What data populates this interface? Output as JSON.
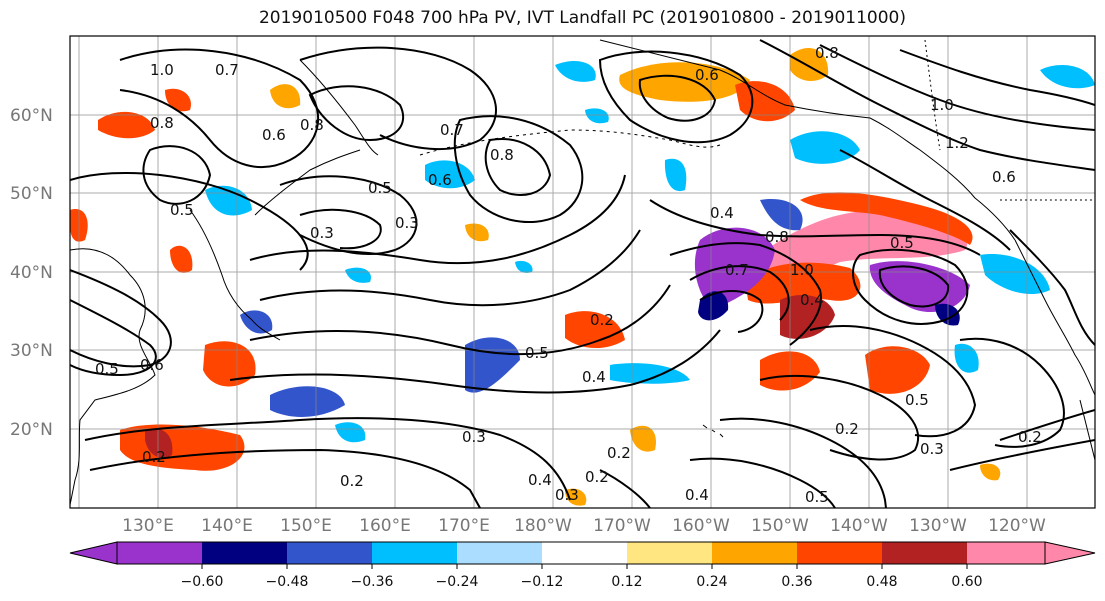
{
  "title": "2019010500 F048 700 hPa PV, IVT Landfall PC (2019010800 - 2019011000)",
  "map": {
    "lat_labels": [
      "60°N",
      "50°N",
      "40°N",
      "30°N",
      "20°N"
    ],
    "lon_labels": [
      "130°E",
      "140°E",
      "150°E",
      "160°E",
      "170°E",
      "180°W",
      "170°W",
      "160°W",
      "150°W",
      "140°W",
      "130°W",
      "120°W"
    ],
    "contour_labels": [
      "0.7",
      "0.8",
      "1.0",
      "0.6",
      "0.8",
      "0.7",
      "0.6",
      "0.8",
      "0.6",
      "0.8",
      "1.0",
      "1.2",
      "0.6",
      "0.5",
      "0.3",
      "0.3",
      "0.5",
      "0.7",
      "0.8",
      "0.4",
      "1.0",
      "0.5",
      "0.4",
      "0.2",
      "0.5",
      "0.4",
      "0.3",
      "0.2",
      "0.2",
      "0.4",
      "0.3",
      "0.2",
      "0.4",
      "0.5",
      "0.5",
      "0.2",
      "0.3",
      "0.6",
      "0.5",
      "0.2",
      "0.2"
    ],
    "colors": {
      "neg_060": "#9933cc",
      "neg_048": "#000080",
      "neg_036": "#3355cc",
      "neg_024": "#00bfff",
      "neg_012": "#aaddff",
      "neutral": "#ffffff",
      "pos_012": "#ffe680",
      "pos_024": "#ffa500",
      "pos_036": "#ff4500",
      "pos_048": "#b22222",
      "pos_060": "#ff88aa"
    }
  },
  "colorbar": {
    "ticks": [
      "−0.60",
      "−0.48",
      "−0.36",
      "−0.24",
      "−0.12",
      "0.12",
      "0.24",
      "0.36",
      "0.48",
      "0.60"
    ]
  }
}
